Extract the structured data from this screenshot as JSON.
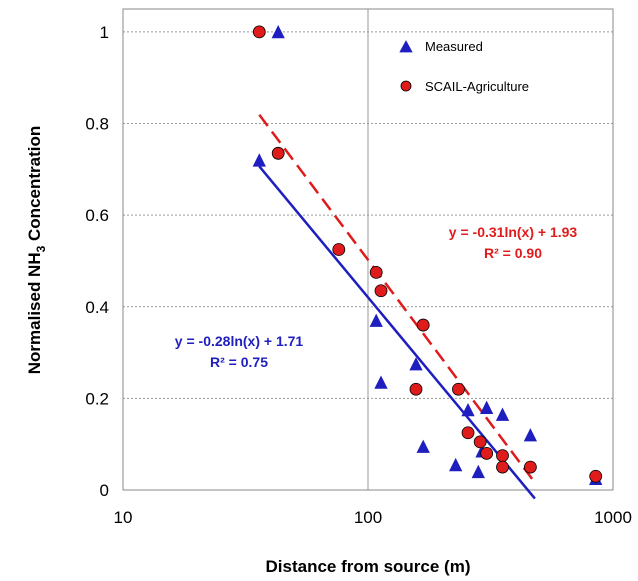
{
  "chart_data": {
    "type": "scatter",
    "xscale": "log",
    "xlim": [
      10,
      1000
    ],
    "ylim": [
      0,
      1.05
    ],
    "xticks": [
      10,
      100,
      1000
    ],
    "xtick_labels": [
      "10",
      "100",
      "1000"
    ],
    "yticks": [
      0,
      0.2,
      0.4,
      0.6,
      0.8,
      1
    ],
    "ytick_labels": [
      "0",
      "0.2",
      "0.4",
      "0.6",
      "0.8",
      "1"
    ],
    "xlabel": "Distance from source (m)",
    "ylabel_prefix": "Normalised NH",
    "ylabel_sub": "3",
    "ylabel_suffix": " Concentration",
    "grid": true,
    "legend_position": "top-right",
    "series": [
      {
        "name": "Measured",
        "marker": "triangle",
        "color": "#1f1fbf",
        "points": [
          {
            "x": 36,
            "y": 0.72
          },
          {
            "x": 43,
            "y": 1.0
          },
          {
            "x": 108,
            "y": 0.37
          },
          {
            "x": 113,
            "y": 0.235
          },
          {
            "x": 157,
            "y": 0.275
          },
          {
            "x": 168,
            "y": 0.095
          },
          {
            "x": 228,
            "y": 0.055
          },
          {
            "x": 256,
            "y": 0.175
          },
          {
            "x": 282,
            "y": 0.04
          },
          {
            "x": 292,
            "y": 0.085
          },
          {
            "x": 305,
            "y": 0.18
          },
          {
            "x": 354,
            "y": 0.165
          },
          {
            "x": 460,
            "y": 0.12
          },
          {
            "x": 850,
            "y": 0.025
          }
        ]
      },
      {
        "name": "SCAIL-Agriculture",
        "marker": "circle",
        "color": "#e01b1b",
        "points": [
          {
            "x": 36,
            "y": 1.0
          },
          {
            "x": 43,
            "y": 0.735
          },
          {
            "x": 76,
            "y": 0.525
          },
          {
            "x": 108,
            "y": 0.475
          },
          {
            "x": 113,
            "y": 0.435
          },
          {
            "x": 157,
            "y": 0.22
          },
          {
            "x": 168,
            "y": 0.36
          },
          {
            "x": 234,
            "y": 0.22
          },
          {
            "x": 256,
            "y": 0.125
          },
          {
            "x": 287,
            "y": 0.105
          },
          {
            "x": 305,
            "y": 0.08
          },
          {
            "x": 354,
            "y": 0.075
          },
          {
            "x": 354,
            "y": 0.05
          },
          {
            "x": 460,
            "y": 0.05
          },
          {
            "x": 850,
            "y": 0.03
          }
        ]
      }
    ],
    "trendlines": [
      {
        "series": "Measured",
        "kind": "logarithmic",
        "slope": -0.28,
        "intercept": 1.71,
        "x_range": [
          36,
          480
        ],
        "color": "#1f1fbf",
        "dashed": false,
        "equation": "y = -0.28ln(x) + 1.71",
        "r2": "R² = 0.75"
      },
      {
        "series": "SCAIL-Agriculture",
        "kind": "logarithmic",
        "slope": -0.31,
        "intercept": 1.93,
        "x_range": [
          36,
          480
        ],
        "color": "#e01b1b",
        "dashed": true,
        "equation": "y = -0.31ln(x) + 1.93",
        "r2": "R² = 0.90"
      }
    ]
  }
}
